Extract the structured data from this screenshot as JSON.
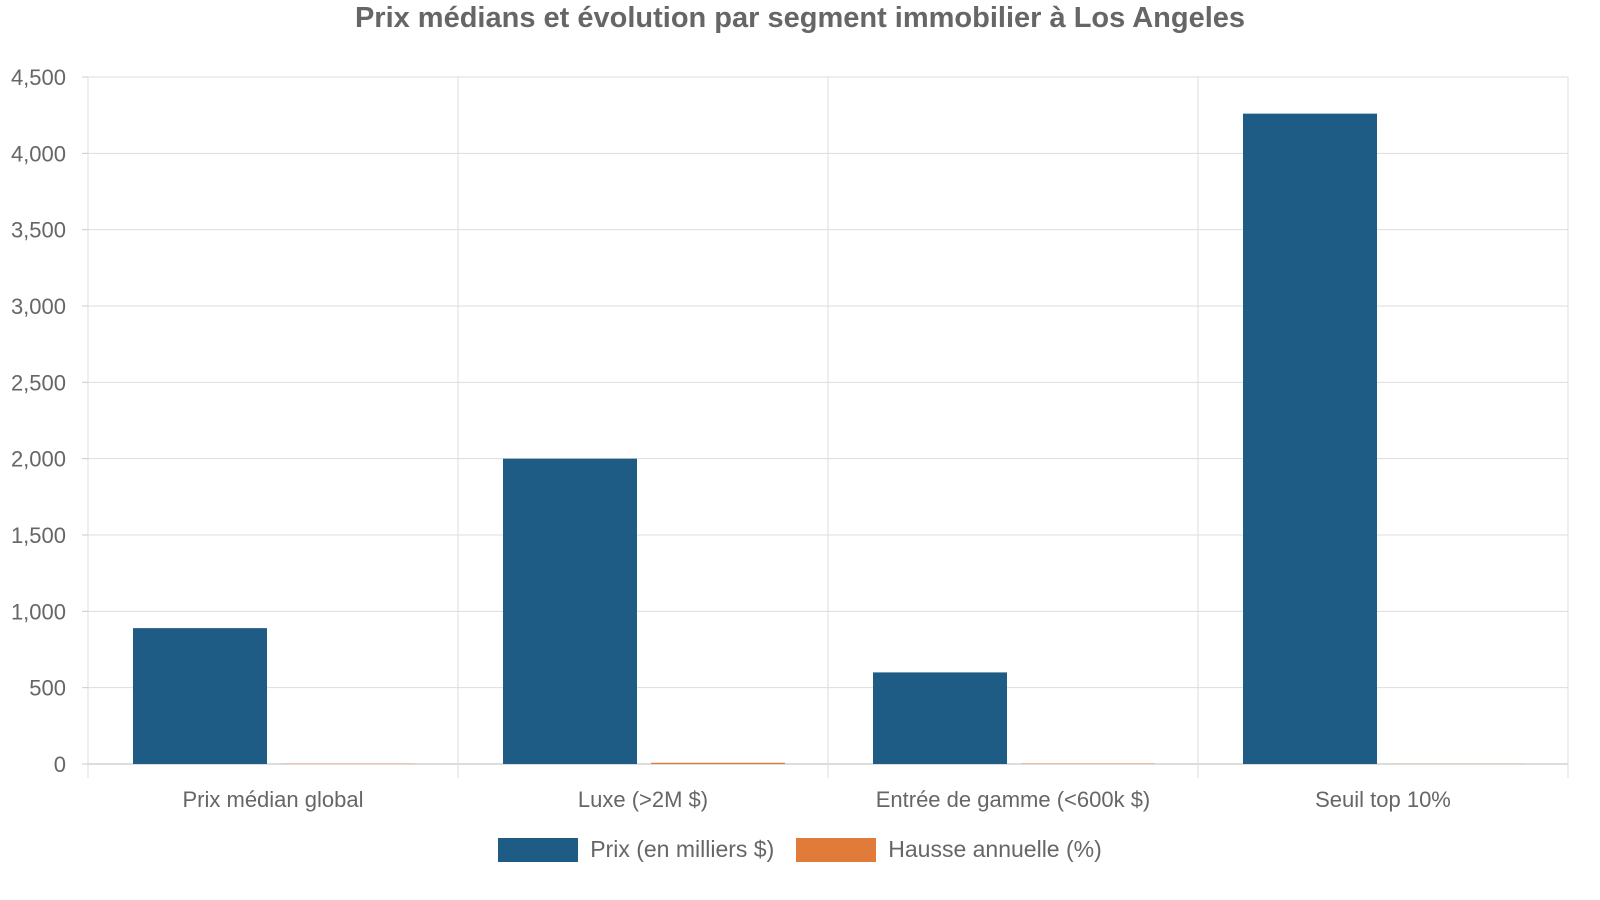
{
  "chart_data": {
    "type": "bar",
    "title": "Prix médians et évolution par segment immobilier à Los Angeles",
    "categories": [
      "Prix médian global",
      "Luxe (>2M $)",
      "Entrée de gamme (<600k $)",
      "Seuil top 10%"
    ],
    "series": [
      {
        "name": "Prix (en milliers $)",
        "color": "#1f5c85",
        "values": [
          890,
          2000,
          600,
          4260
        ]
      },
      {
        "name": "Hausse annuelle (%)",
        "color": "#e07b39",
        "values": [
          2,
          8,
          3,
          1
        ]
      }
    ],
    "ylim": [
      0,
      4500
    ],
    "yticks": [
      "0",
      "500",
      "1,000",
      "1,500",
      "2,000",
      "2,500",
      "3,000",
      "3,500",
      "4,000",
      "4,500"
    ],
    "ytick_values": [
      0,
      500,
      1000,
      1500,
      2000,
      2500,
      3000,
      3500,
      4000,
      4500
    ],
    "grid": true,
    "legend_position": "bottom-center"
  }
}
